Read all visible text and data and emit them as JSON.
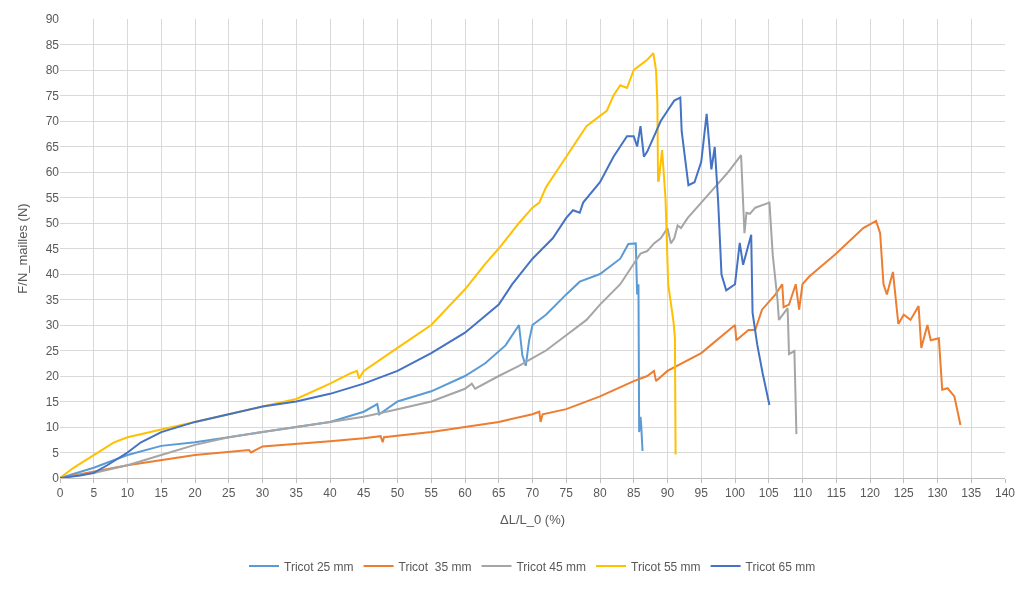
{
  "chart_data": {
    "type": "line",
    "xlabel": "ΔL/L_0 (%)",
    "ylabel": "F/N_mailles (N)",
    "xlim": [
      0,
      140
    ],
    "xticks": [
      0,
      5,
      10,
      15,
      20,
      25,
      30,
      35,
      40,
      45,
      50,
      55,
      60,
      65,
      70,
      75,
      80,
      85,
      90,
      95,
      100,
      105,
      110,
      115,
      120,
      125,
      130,
      135,
      140
    ],
    "ylim": [
      0,
      90
    ],
    "yticks": [
      0,
      5,
      10,
      15,
      20,
      25,
      30,
      35,
      40,
      45,
      50,
      55,
      60,
      65,
      70,
      75,
      80,
      85,
      90
    ],
    "grid": true,
    "legend": "bottom",
    "marker": "none",
    "line_style": "solid",
    "series": [
      {
        "name": "Tricot 25 mm",
        "color": "#5b9bd5",
        "x": [
          0,
          5,
          10,
          15,
          20,
          25,
          30,
          35,
          40,
          45,
          47,
          47.3,
          50,
          55,
          60,
          63,
          66,
          68,
          68.5,
          69,
          69.5,
          70,
          72,
          75,
          77,
          80,
          83,
          84.2,
          85.3,
          85.5,
          85.7,
          85.8,
          86,
          86.1,
          86.3
        ],
        "values": [
          0,
          2,
          4.5,
          6.3,
          7,
          8,
          9,
          10,
          11,
          13,
          14.5,
          12.5,
          15,
          17,
          20,
          22.5,
          26,
          30,
          24,
          22,
          27,
          30,
          32,
          36,
          38.5,
          40,
          43,
          45.9,
          46,
          36,
          38,
          9,
          12,
          10.5,
          5.3
        ]
      },
      {
        "name": "Tricot  35 mm",
        "color": "#ed7d31",
        "x": [
          0,
          10,
          20,
          28,
          28.3,
          30,
          40,
          45,
          47.5,
          47.8,
          48,
          55,
          60,
          65,
          70,
          71,
          71.2,
          71.5,
          75,
          80,
          85,
          87,
          88,
          88.3,
          90,
          95,
          100,
          100.2,
          102,
          103,
          104,
          106,
          107,
          107.2,
          108,
          109,
          109.5,
          110,
          111,
          115,
          119,
          120.9,
          121.5,
          122,
          122.5,
          123,
          123.4,
          124.2,
          125,
          126,
          127.2,
          127.6,
          128.5,
          129,
          130.2,
          130.7,
          131.5,
          132.5,
          133.4
        ],
        "values": [
          0,
          2.5,
          4.5,
          5.5,
          5,
          6.2,
          7.2,
          7.8,
          8.2,
          7,
          8,
          9,
          10,
          11,
          12.5,
          13,
          11,
          12.5,
          13.5,
          16,
          19,
          20,
          21,
          19,
          21,
          24.5,
          30,
          27,
          29,
          29,
          33,
          36,
          38,
          33.5,
          34,
          38,
          33,
          38,
          39.5,
          44,
          49,
          50.4,
          48,
          38,
          36,
          38.5,
          40.4,
          30.2,
          32,
          31,
          33.7,
          25.5,
          30,
          27,
          27.4,
          17.3,
          17.6,
          16,
          10.4
        ]
      },
      {
        "name": "Tricot 45 mm",
        "color": "#a5a5a5",
        "x": [
          0,
          5,
          10,
          15,
          20,
          25,
          30,
          35,
          40,
          45,
          50,
          55,
          60,
          61,
          61.5,
          65,
          68,
          70,
          72,
          75,
          78,
          80,
          83,
          85,
          86,
          87,
          88,
          89,
          90,
          90.5,
          91,
          91.5,
          92,
          93,
          95,
          97,
          99,
          100.9,
          101.4,
          101.7,
          102.2,
          103,
          105.1,
          105.6,
          106.3,
          106.5,
          107.8,
          108,
          108.8,
          109.1
        ],
        "values": [
          0,
          1,
          2.5,
          4.5,
          6.5,
          8,
          9,
          10,
          11,
          12,
          13.5,
          15,
          17.5,
          18.5,
          17.5,
          20,
          22,
          23.5,
          25,
          28,
          31,
          34,
          38,
          42,
          44,
          44.5,
          46,
          47,
          49,
          46,
          47,
          49.5,
          49,
          51,
          54,
          57,
          60,
          63.3,
          48,
          52,
          51.8,
          53,
          54,
          43.6,
          34.9,
          31,
          33.3,
          24.3,
          24.9,
          8.6
        ]
      },
      {
        "name": "Tricot 55 mm",
        "color": "#ffc000",
        "x": [
          0,
          2,
          5,
          8,
          10,
          15,
          20,
          25,
          30,
          35,
          40,
          43,
          44,
          44.3,
          45,
          50,
          55,
          60,
          63,
          65,
          68,
          70,
          71,
          72,
          75,
          77,
          78,
          80,
          81,
          82,
          83,
          84,
          85,
          86,
          87,
          87.9,
          88.3,
          88.5,
          88.6,
          88.7,
          89.2,
          89.7,
          90.1,
          90.9,
          91.1,
          91.2
        ],
        "values": [
          0,
          2,
          4.5,
          7,
          8,
          9.5,
          11,
          12.5,
          14,
          15.5,
          18.5,
          20.5,
          21,
          19.5,
          21,
          25.5,
          30,
          37,
          42,
          45,
          50,
          53,
          54,
          57,
          63,
          67,
          69,
          71,
          72,
          75,
          77,
          76.5,
          80,
          81,
          82,
          83.3,
          80,
          73.6,
          58.3,
          58.3,
          64.3,
          54.9,
          38,
          30.5,
          27.4,
          4.6
        ]
      },
      {
        "name": "Tricot 65 mm",
        "color": "#4472c4",
        "x": [
          0,
          3,
          5,
          7,
          10,
          12,
          15,
          20,
          25,
          30,
          35,
          40,
          45,
          50,
          55,
          60,
          65,
          67,
          70,
          73,
          75,
          76,
          77,
          77.5,
          80,
          82,
          84,
          85,
          85.5,
          86,
          86.5,
          87,
          88,
          89,
          90,
          91,
          91.9,
          92.1,
          93.1,
          94,
          95,
          95.8,
          96.5,
          97,
          97.5,
          98,
          98.7,
          100,
          100.7,
          101.2,
          102.4,
          102.6,
          103.3,
          104.1,
          105.1
        ],
        "values": [
          0,
          0.5,
          1,
          2.5,
          5,
          7,
          9,
          11,
          12.5,
          14,
          15,
          16.5,
          18.5,
          21,
          24.5,
          28.5,
          34,
          38,
          43,
          47,
          51,
          52.5,
          52,
          54,
          58,
          63,
          67,
          67,
          65,
          69,
          63,
          64,
          67,
          70,
          72,
          74,
          74.6,
          68,
          57.4,
          58,
          62,
          71.4,
          60.5,
          64.9,
          54.3,
          39.9,
          36.8,
          38,
          46.1,
          41.8,
          47.7,
          32.4,
          26.1,
          20.5,
          14.3
        ]
      }
    ]
  }
}
